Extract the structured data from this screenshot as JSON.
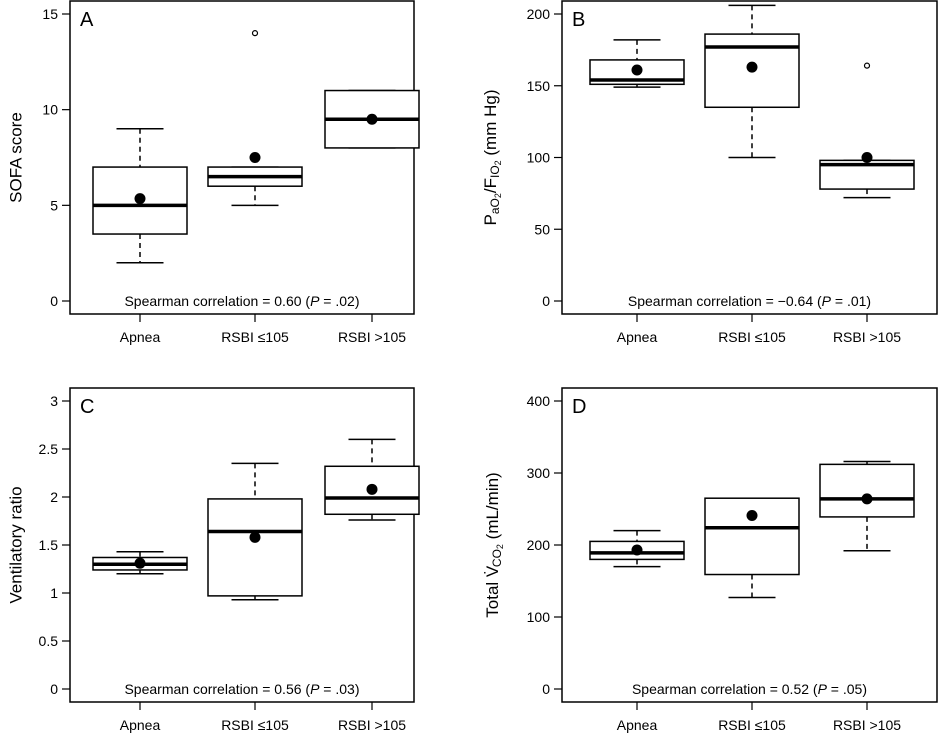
{
  "chart_data": [
    {
      "type": "box",
      "panel": "A",
      "ylabel": "SOFA score",
      "ylim": [
        0,
        15
      ],
      "yticks": [
        0,
        5,
        10,
        15
      ],
      "categories": [
        "Apnea",
        "RSBI ≤105",
        "RSBI >105"
      ],
      "boxes": [
        {
          "whisker_low": 2,
          "q1": 3.5,
          "median": 5,
          "q3": 7,
          "whisker_high": 9,
          "mean": 5.35,
          "outliers": []
        },
        {
          "whisker_low": 5,
          "q1": 6,
          "median": 6.5,
          "q3": 7,
          "whisker_high": 7,
          "mean": 7.5,
          "outliers": [
            14
          ]
        },
        {
          "whisker_low": 8,
          "q1": 8,
          "median": 9.5,
          "q3": 11,
          "whisker_high": 11,
          "mean": 9.5,
          "outliers": []
        }
      ],
      "annotation": {
        "prefix": "Spearman correlation = 0.60 (",
        "p_label": "P",
        "suffix": " = .02)"
      }
    },
    {
      "type": "box",
      "panel": "B",
      "ylabel": {
        "main": "P",
        "sub1": "aO",
        "sub1b": "2",
        "slash": "/F",
        "sub2": "IO",
        "sub2b": "2",
        "units": " (mm Hg)"
      },
      "ylim": [
        0,
        200
      ],
      "yticks": [
        0,
        50,
        100,
        150,
        200
      ],
      "categories": [
        "Apnea",
        "RSBI ≤105",
        "RSBI >105"
      ],
      "boxes": [
        {
          "whisker_low": 149,
          "q1": 151,
          "median": 154,
          "q3": 168,
          "whisker_high": 182,
          "mean": 161,
          "outliers": []
        },
        {
          "whisker_low": 100,
          "q1": 135,
          "median": 177,
          "q3": 186,
          "whisker_high": 206,
          "mean": 163,
          "outliers": []
        },
        {
          "whisker_low": 72,
          "q1": 78,
          "median": 95,
          "q3": 98,
          "whisker_high": 98,
          "mean": 100,
          "outliers": [
            164
          ]
        }
      ],
      "annotation": {
        "prefix": "Spearman correlation = −0.64 (",
        "p_label": "P",
        "suffix": " = .01)"
      }
    },
    {
      "type": "box",
      "panel": "C",
      "ylabel": "Ventilatory ratio",
      "ylim": [
        0,
        3
      ],
      "yticks": [
        0,
        0.5,
        1,
        1.5,
        2,
        2.5,
        3
      ],
      "yticklabels": [
        "0",
        "0.5",
        "1",
        "1.5",
        "2",
        "2.5",
        "3"
      ],
      "categories": [
        "Apnea",
        "RSBI ≤105",
        "RSBI >105"
      ],
      "boxes": [
        {
          "whisker_low": 1.2,
          "q1": 1.24,
          "median": 1.3,
          "q3": 1.37,
          "whisker_high": 1.43,
          "mean": 1.31,
          "outliers": []
        },
        {
          "whisker_low": 0.93,
          "q1": 0.97,
          "median": 1.64,
          "q3": 1.98,
          "whisker_high": 2.35,
          "mean": 1.58,
          "outliers": []
        },
        {
          "whisker_low": 1.76,
          "q1": 1.82,
          "median": 1.99,
          "q3": 2.32,
          "whisker_high": 2.6,
          "mean": 2.08,
          "outliers": []
        }
      ],
      "annotation": {
        "prefix": "Spearman correlation = 0.56 (",
        "p_label": "P",
        "suffix": " = .03)"
      }
    },
    {
      "type": "box",
      "panel": "D",
      "ylabel": {
        "main": "Total V",
        "dot": "˙",
        "sub": "CO",
        "subb": "2",
        "units": " (mL/min)"
      },
      "ylim": [
        0,
        400
      ],
      "yticks": [
        0,
        100,
        200,
        300,
        400
      ],
      "categories": [
        "Apnea",
        "RSBI ≤105",
        "RSBI >105"
      ],
      "boxes": [
        {
          "whisker_low": 170,
          "q1": 180,
          "median": 189,
          "q3": 205,
          "whisker_high": 220,
          "mean": 193,
          "outliers": []
        },
        {
          "whisker_low": 127,
          "q1": 159,
          "median": 224,
          "q3": 265,
          "whisker_high": 265,
          "mean": 241,
          "outliers": []
        },
        {
          "whisker_low": 192,
          "q1": 239,
          "median": 264,
          "q3": 312,
          "whisker_high": 316,
          "mean": 264,
          "outliers": []
        }
      ],
      "annotation": {
        "prefix": "Spearman correlation = 0.52 (",
        "p_label": "P",
        "suffix": " = .05)"
      }
    }
  ]
}
